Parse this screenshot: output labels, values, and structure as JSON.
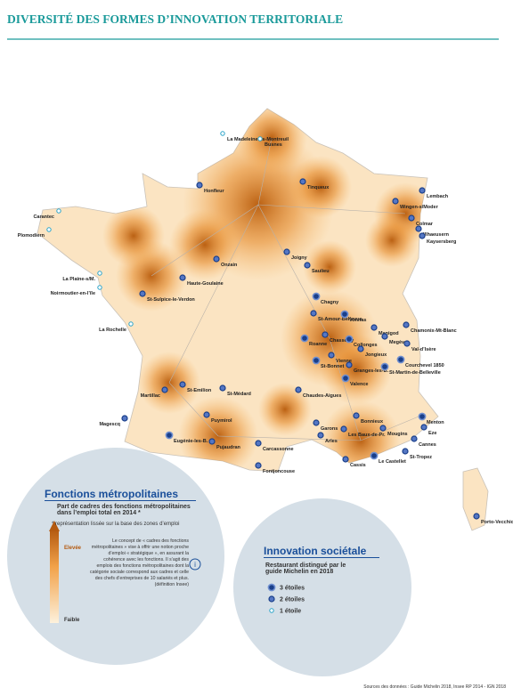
{
  "header": {
    "title": "DIVERSITÉ DES FORMES D’INNOVATION TERRITORIALE"
  },
  "places": [
    {
      "name": "La Madeleine-ss-Montreuil",
      "stars": 1
    },
    {
      "name": "Busnes",
      "stars": 1
    },
    {
      "name": "Honfleur",
      "stars": 2
    },
    {
      "name": "Tinqueux",
      "stars": 2
    },
    {
      "name": "Lembach",
      "stars": 2
    },
    {
      "name": "Wingen-s/Moder",
      "stars": 2
    },
    {
      "name": "Carantec",
      "stars": 1
    },
    {
      "name": "Plomodiern",
      "stars": 1
    },
    {
      "name": "Illhaeusern",
      "stars": 2
    },
    {
      "name": "Kaysersberg",
      "stars": 2
    },
    {
      "name": "Colmar",
      "stars": 2
    },
    {
      "name": "Joigny",
      "stars": 2
    },
    {
      "name": "Onzain",
      "stars": 2
    },
    {
      "name": "Saulieu",
      "stars": 2
    },
    {
      "name": "La Plaine-s/M.",
      "stars": 1
    },
    {
      "name": "Haute-Goulaine",
      "stars": 2
    },
    {
      "name": "Noirmoutier-en-l’île",
      "stars": 1
    },
    {
      "name": "St-Sulpice-le-Verdon",
      "stars": 2
    },
    {
      "name": "Chagny",
      "stars": 3
    },
    {
      "name": "St-Amour-Bellevue",
      "stars": 2
    },
    {
      "name": "Vonnas",
      "stars": 3
    },
    {
      "name": "La Rochelle",
      "stars": 1
    },
    {
      "name": "Manigod",
      "stars": 2
    },
    {
      "name": "Chamonix-Mt-Blanc",
      "stars": 2
    },
    {
      "name": "Megève",
      "stars": 2
    },
    {
      "name": "Val-d’Isère",
      "stars": 2
    },
    {
      "name": "Chasselay",
      "stars": 2
    },
    {
      "name": "Collonges",
      "stars": 3
    },
    {
      "name": "Roanne",
      "stars": 3
    },
    {
      "name": "Jongieux",
      "stars": 2
    },
    {
      "name": "Vienne",
      "stars": 2
    },
    {
      "name": "St-Bonnet",
      "stars": 3
    },
    {
      "name": "Courchevel 1850",
      "stars": 3
    },
    {
      "name": "Granges-les-B.",
      "stars": 2
    },
    {
      "name": "St-Martin-de-Belleville",
      "stars": 3
    },
    {
      "name": "Valence",
      "stars": 3
    },
    {
      "name": "St-Emilion",
      "stars": 2
    },
    {
      "name": "St-Médard",
      "stars": 2
    },
    {
      "name": "Martillac",
      "stars": 2
    },
    {
      "name": "Chaudes-Aigues",
      "stars": 2
    },
    {
      "name": "Puymirol",
      "stars": 2
    },
    {
      "name": "Bonnieux",
      "stars": 2
    },
    {
      "name": "Menton",
      "stars": 3
    },
    {
      "name": "Garons",
      "stars": 2
    },
    {
      "name": "Mougins",
      "stars": 2
    },
    {
      "name": "Eze",
      "stars": 2
    },
    {
      "name": "Magescq",
      "stars": 2
    },
    {
      "name": "Arles",
      "stars": 2
    },
    {
      "name": "Les Baux-de-Pr.",
      "stars": 2
    },
    {
      "name": "Eugénie-les-B.",
      "stars": 3
    },
    {
      "name": "Pujaudran",
      "stars": 2
    },
    {
      "name": "Cannes",
      "stars": 2
    },
    {
      "name": "Carcassonne",
      "stars": 2
    },
    {
      "name": "Cassis",
      "stars": 2
    },
    {
      "name": "Le Castellet",
      "stars": 3
    },
    {
      "name": "St-Tropez",
      "stars": 2
    },
    {
      "name": "Fontjoncouse",
      "stars": 2
    },
    {
      "name": "Porto-Vecchio",
      "stars": 2
    }
  ],
  "legend_metro": {
    "title": "Fonctions métropolitaines",
    "subtitle": "Part de cadres des fonctions métropolitaines dans l’emploi total en 2014 *",
    "note": "* représentation lissée sur la base des zones d’emploi",
    "high": "Elevée",
    "low": "Faible",
    "definition": "Le concept de « cadres des fonctions métropolitaines » vise à offrir une notion proche d’emploi « stratégique », en assurant la cohérence avec les fonctions. Il s’agit des emplois des fonctions métropolitaines dont la catégorie sociale correspond aux cadres et celle des chefs d’entreprises de 10 salariés et plus. (définition Insee)"
  },
  "legend_resto": {
    "title": "Innovation sociétale",
    "subtitle": "Restaurant distingué par le guide Michelin en 2018",
    "items": [
      {
        "label": "3 étoiles",
        "stars": 3
      },
      {
        "label": "2 étoiles",
        "stars": 2
      },
      {
        "label": "1 étoile",
        "stars": 1
      }
    ]
  },
  "footer": {
    "source": "Sources des données : Guide Michelin 2018, Insee RP 2014 - IGN 2018"
  }
}
